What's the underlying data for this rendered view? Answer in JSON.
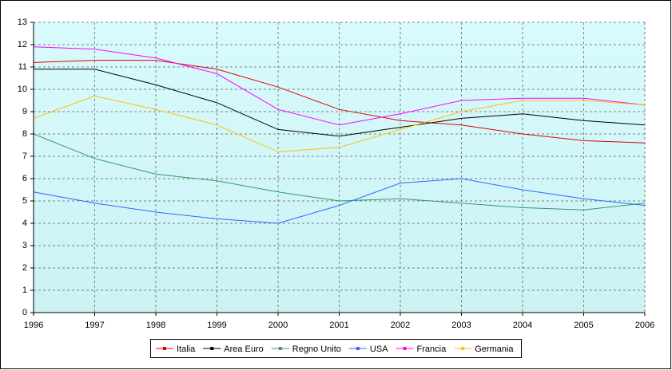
{
  "chart_data": {
    "type": "line",
    "x": [
      1996,
      1997,
      1998,
      1999,
      2000,
      2001,
      2002,
      2003,
      2004,
      2005,
      2006
    ],
    "xlim": [
      1996,
      2006
    ],
    "xticks": [
      1996,
      1997,
      1998,
      1999,
      2000,
      2001,
      2002,
      2003,
      2004,
      2005,
      2006
    ],
    "ylim": [
      0,
      13
    ],
    "yticks": [
      0,
      1,
      2,
      3,
      4,
      5,
      6,
      7,
      8,
      9,
      10,
      11,
      12,
      13
    ],
    "grid": true,
    "legend": "bottom",
    "series": [
      {
        "name": "Italia",
        "color": "#e00000",
        "values": [
          11.2,
          11.3,
          11.3,
          10.9,
          10.1,
          9.1,
          8.6,
          8.4,
          8.0,
          7.7,
          7.6
        ]
      },
      {
        "name": "Area Euro",
        "color": "#000000",
        "values": [
          10.9,
          10.9,
          10.2,
          9.4,
          8.2,
          7.9,
          8.3,
          8.7,
          8.9,
          8.6,
          8.4
        ]
      },
      {
        "name": "Regno Unito",
        "color": "#339966",
        "values": [
          8.0,
          6.9,
          6.2,
          5.9,
          5.4,
          5.0,
          5.1,
          4.9,
          4.7,
          4.6,
          4.9
        ]
      },
      {
        "name": "USA",
        "color": "#3366ff",
        "values": [
          5.4,
          4.9,
          4.5,
          4.2,
          4.0,
          4.8,
          5.8,
          6.0,
          5.5,
          5.1,
          4.8
        ]
      },
      {
        "name": "Francia",
        "color": "#ff00ff",
        "values": [
          11.9,
          11.8,
          11.4,
          10.7,
          9.1,
          8.4,
          8.9,
          9.5,
          9.6,
          9.6,
          9.3
        ]
      },
      {
        "name": "Germania",
        "color": "#ffc000",
        "values": [
          8.7,
          9.7,
          9.1,
          8.4,
          7.2,
          7.4,
          8.2,
          9.0,
          9.5,
          9.5,
          9.3
        ]
      }
    ]
  }
}
